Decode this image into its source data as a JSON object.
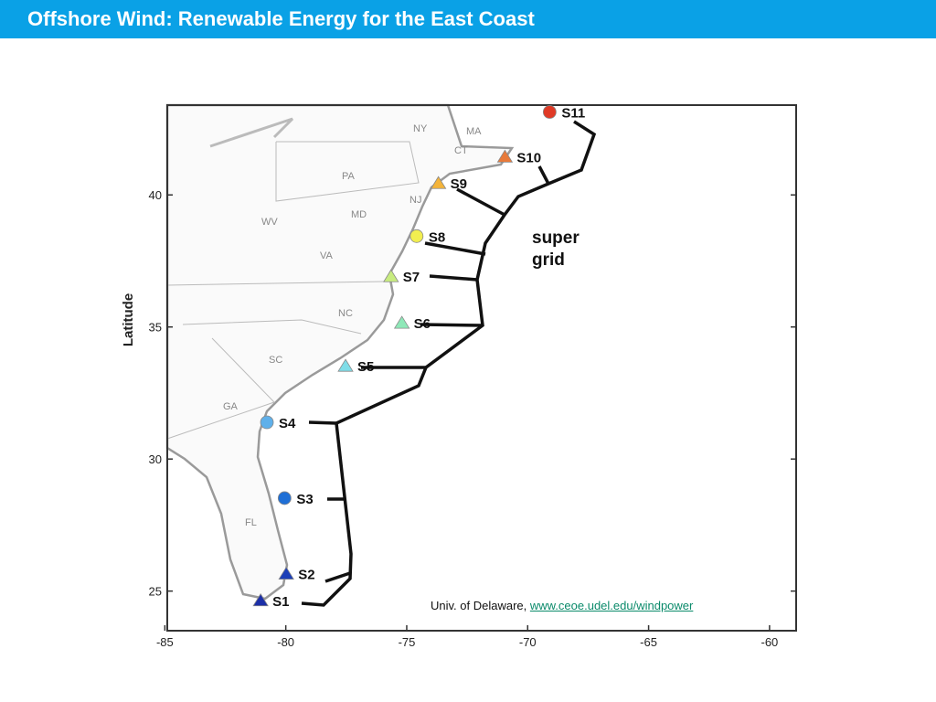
{
  "header": {
    "title": "Offshore Wind: Renewable Energy for the East Coast"
  },
  "map": {
    "y_label": "Latitude",
    "xlim": [
      -84.9,
      -58.9
    ],
    "ylim": [
      23.5,
      43.4
    ],
    "xticks": [
      -85,
      -80,
      -75,
      -70,
      -65,
      -60
    ],
    "yticks": [
      25,
      30,
      35,
      40
    ],
    "states": [
      "NY",
      "MA",
      "CT",
      "PA",
      "NJ",
      "MD",
      "WV",
      "VA",
      "NC",
      "SC",
      "GA",
      "FL"
    ],
    "annotation": "super grid",
    "sites": [
      {
        "label": "S1",
        "lon": -81.04,
        "lat": 24.65,
        "shape": "triangle",
        "color": "#1c2fa8"
      },
      {
        "label": "S2",
        "lon": -79.98,
        "lat": 25.66,
        "shape": "triangle",
        "color": "#1c3fb8"
      },
      {
        "label": "S3",
        "lon": -80.05,
        "lat": 28.52,
        "shape": "circle",
        "color": "#1f6fd6"
      },
      {
        "label": "S4",
        "lon": -80.78,
        "lat": 31.39,
        "shape": "circle",
        "color": "#5fb0ea"
      },
      {
        "label": "S5",
        "lon": -77.53,
        "lat": 33.53,
        "shape": "triangle",
        "color": "#7fdde8"
      },
      {
        "label": "S6",
        "lon": -75.2,
        "lat": 35.16,
        "shape": "triangle",
        "color": "#8fe8b8"
      },
      {
        "label": "S7",
        "lon": -75.65,
        "lat": 36.92,
        "shape": "triangle",
        "color": "#c8ec80"
      },
      {
        "label": "S8",
        "lon": -74.59,
        "lat": 38.44,
        "shape": "circle",
        "color": "#f2ee50"
      },
      {
        "label": "S9",
        "lon": -73.69,
        "lat": 40.45,
        "shape": "triangle",
        "color": "#f4b43a"
      },
      {
        "label": "S10",
        "lon": -70.94,
        "lat": 41.45,
        "shape": "triangle",
        "color": "#e87a3a"
      },
      {
        "label": "S11",
        "lon": -69.09,
        "lat": 43.14,
        "shape": "circle",
        "color": "#e03a26"
      }
    ]
  },
  "credit": {
    "text": "Univ. of Delaware, ",
    "link": "www.ceoe.udel.edu/windpower"
  }
}
